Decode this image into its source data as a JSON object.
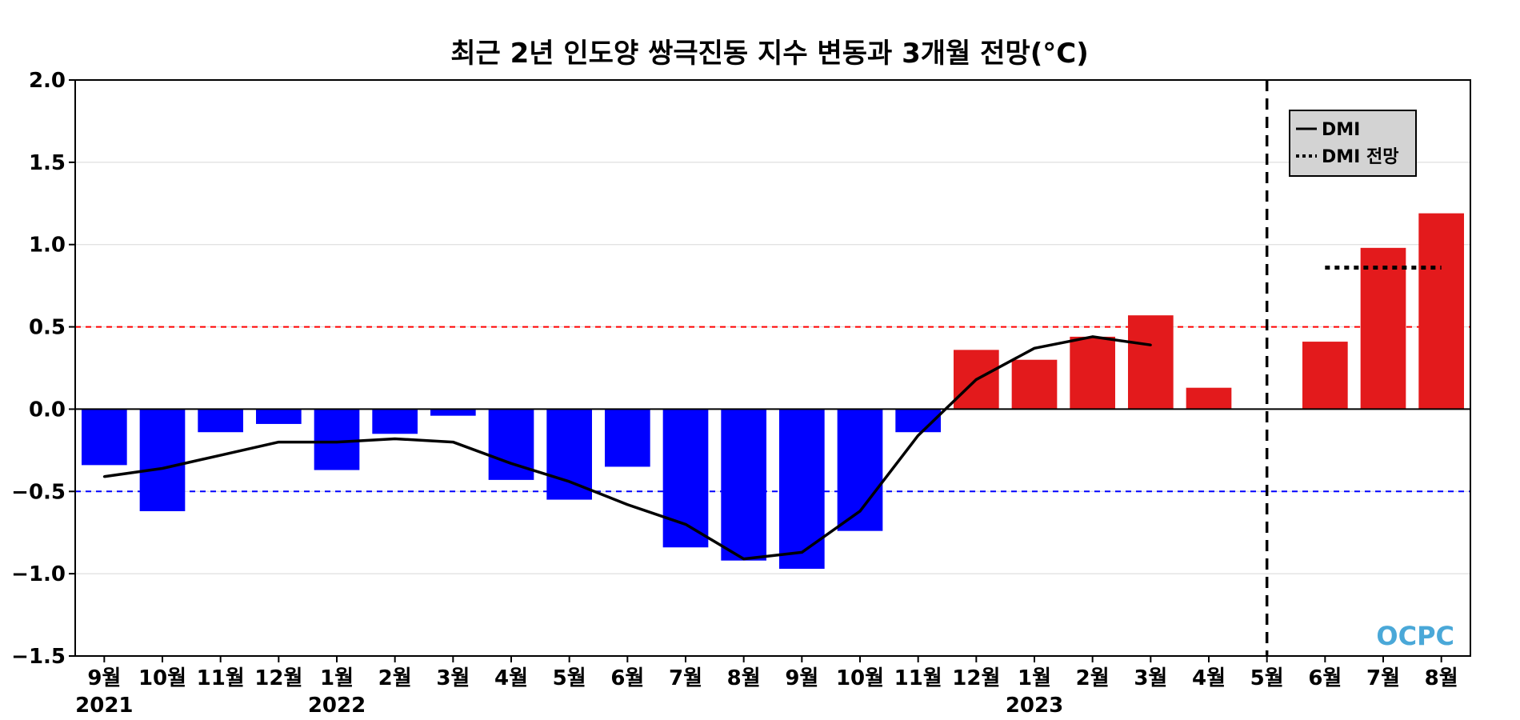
{
  "chart_data": {
    "type": "bar",
    "title": "최근 2년 인도양 쌍극진동 지수 변동과 3개월 전망(°C)",
    "xlabel": "",
    "ylabel": "",
    "ylim": [
      -1.5,
      2.0
    ],
    "yticks": [
      "2.0",
      "1.5",
      "1.0",
      "0.5",
      "0.0",
      "−0.5",
      "−1.0",
      "−1.5"
    ],
    "ytick_values": [
      2.0,
      1.5,
      1.0,
      0.5,
      0.0,
      -0.5,
      -1.0,
      -1.5
    ],
    "categories": [
      "9월",
      "10월",
      "11월",
      "12월",
      "1월",
      "2월",
      "3월",
      "4월",
      "5월",
      "6월",
      "7월",
      "8월",
      "9월",
      "10월",
      "11월",
      "12월",
      "1월",
      "2월",
      "3월",
      "4월",
      "5월",
      "6월",
      "7월",
      "8월"
    ],
    "year_labels": [
      {
        "index": 0,
        "label": "2021"
      },
      {
        "index": 4,
        "label": "2022"
      },
      {
        "index": 16,
        "label": "2023"
      }
    ],
    "series": [
      {
        "name": "",
        "kind": "bar",
        "values": [
          -0.34,
          -0.62,
          -0.14,
          -0.09,
          -0.37,
          -0.15,
          -0.04,
          -0.43,
          -0.55,
          -0.35,
          -0.84,
          -0.92,
          -0.97,
          -0.74,
          -0.14,
          0.36,
          0.3,
          0.44,
          0.57,
          0.13,
          null,
          0.41,
          0.98,
          1.19
        ],
        "positive_color": "#e31a1c",
        "negative_color": "#0000ff"
      },
      {
        "name": "DMI",
        "kind": "line",
        "values": [
          -0.41,
          -0.36,
          -0.28,
          -0.2,
          -0.2,
          -0.18,
          -0.2,
          -0.33,
          -0.44,
          -0.58,
          -0.7,
          -0.91,
          -0.87,
          -0.62,
          -0.16,
          0.18,
          0.37,
          0.44,
          0.39,
          null,
          null,
          null,
          null,
          null
        ],
        "color": "#000000"
      },
      {
        "name": "DMI 전망",
        "kind": "forecast",
        "x_range": [
          21,
          23
        ],
        "value": 0.86,
        "color": "#000000"
      }
    ],
    "thresholds": [
      {
        "value": 0.5,
        "color": "#ff0000"
      },
      {
        "value": -0.5,
        "color": "#0000ff"
      }
    ],
    "divider_index": 20,
    "grid": true,
    "legend_position": "top-right",
    "legend_bg": "#d3d3d3",
    "logo_text": "OCPC"
  }
}
